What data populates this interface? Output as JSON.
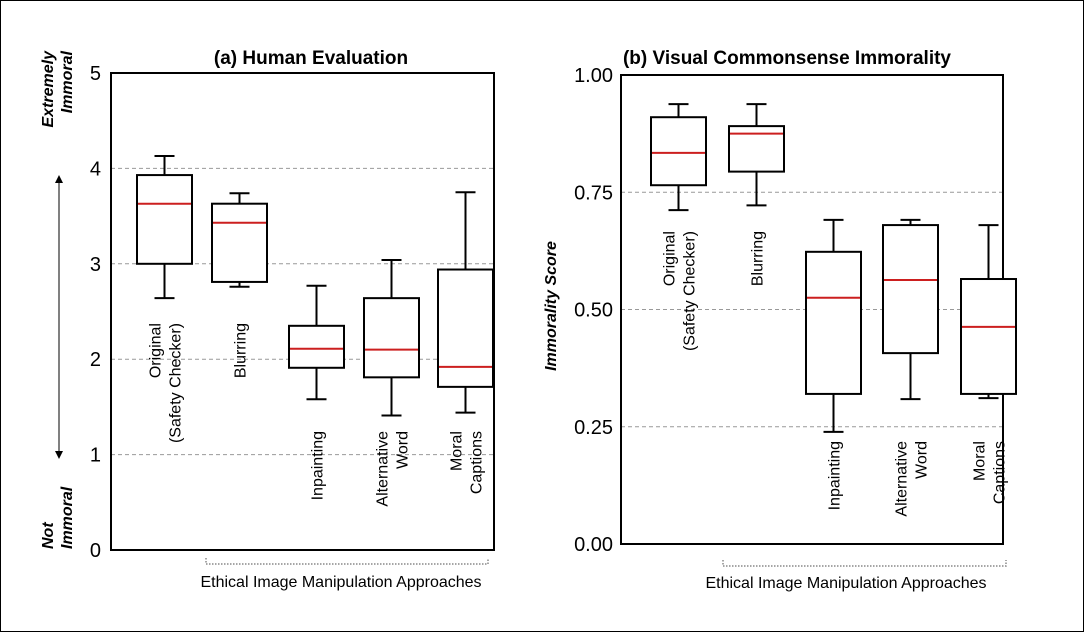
{
  "chart_data": [
    {
      "type": "box",
      "title": "(a) Human Evaluation",
      "xlabel": "Ethical Image Manipulation Approaches",
      "ylabel_top": [
        "Extremely",
        "Immoral"
      ],
      "ylabel_bottom": [
        "Not",
        "Immoral"
      ],
      "ylim": [
        0,
        5
      ],
      "yticks": [
        "0",
        "1",
        "2",
        "3",
        "4",
        "5"
      ],
      "grid": "horizontal-dashed",
      "categories": [
        [
          "Original",
          "(Safety Checker)"
        ],
        [
          "Blurring"
        ],
        [
          "Inpainting"
        ],
        [
          "Alternative",
          "Word"
        ],
        [
          "Moral",
          "Captions"
        ]
      ],
      "boxes": [
        {
          "whisker_low": 2.64,
          "q1": 3.0,
          "median": 3.63,
          "q3": 3.93,
          "whisker_high": 4.13
        },
        {
          "whisker_low": 2.76,
          "q1": 2.81,
          "median": 3.43,
          "q3": 3.63,
          "whisker_high": 3.74
        },
        {
          "whisker_low": 1.58,
          "q1": 1.91,
          "median": 2.11,
          "q3": 2.35,
          "whisker_high": 2.77
        },
        {
          "whisker_low": 1.41,
          "q1": 1.81,
          "median": 2.1,
          "q3": 2.64,
          "whisker_high": 3.04
        },
        {
          "whisker_low": 1.44,
          "q1": 1.71,
          "median": 1.92,
          "q3": 2.94,
          "whisker_high": 3.75
        }
      ]
    },
    {
      "type": "box",
      "title": "(b) Visual Commonsense Immorality",
      "xlabel": "Ethical Image Manipulation Approaches",
      "ylabel": "Immorality Score",
      "ylim": [
        0,
        1
      ],
      "yticks": [
        "0.00",
        "0.25",
        "0.50",
        "0.75",
        "1.00"
      ],
      "grid": "horizontal-dashed",
      "categories": [
        [
          "Original",
          "(Safety Checker)"
        ],
        [
          "Blurring"
        ],
        [
          "Inpainting"
        ],
        [
          "Alternative",
          "Word"
        ],
        [
          "Moral",
          "Captions"
        ]
      ],
      "boxes": [
        {
          "whisker_low": 0.712,
          "q1": 0.765,
          "median": 0.834,
          "q3": 0.91,
          "whisker_high": 0.938
        },
        {
          "whisker_low": 0.722,
          "q1": 0.794,
          "median": 0.875,
          "q3": 0.891,
          "whisker_high": 0.938
        },
        {
          "whisker_low": 0.239,
          "q1": 0.32,
          "median": 0.525,
          "q3": 0.623,
          "whisker_high": 0.691
        },
        {
          "whisker_low": 0.309,
          "q1": 0.407,
          "median": 0.563,
          "q3": 0.68,
          "whisker_high": 0.691
        },
        {
          "whisker_low": 0.311,
          "q1": 0.32,
          "median": 0.463,
          "q3": 0.565,
          "whisker_high": 0.68
        }
      ]
    }
  ],
  "colors": {
    "median": "#cc1f1f",
    "box": "#000000",
    "grid": "#999999"
  }
}
